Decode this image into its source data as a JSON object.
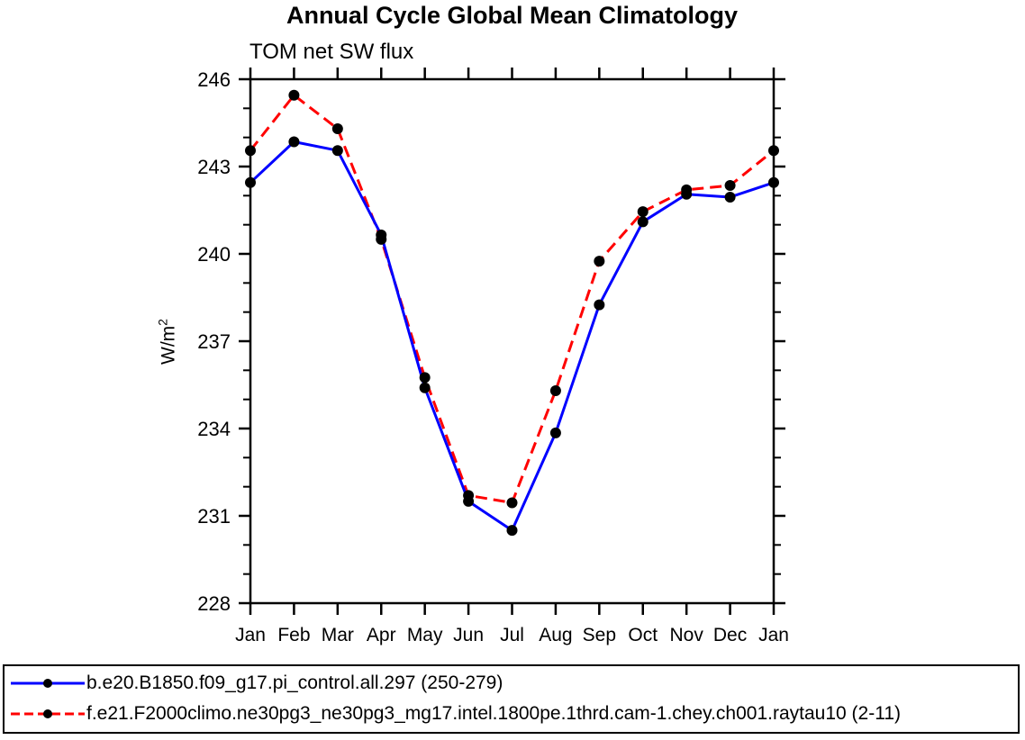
{
  "title": "Annual Cycle Global Mean Climatology",
  "subtitle": "TOM net SW flux",
  "y_axis": {
    "label_base": "W/m",
    "label_sup": "2"
  },
  "colors": {
    "series1": "#0000ff",
    "series2": "#ff0000",
    "marker": "#000000",
    "axis": "#000000",
    "background": "#ffffff"
  },
  "chart_data": {
    "type": "line",
    "title": "Annual Cycle Global Mean Climatology",
    "subtitle": "TOM net SW flux",
    "ylabel": "W/m2",
    "ylim": [
      228,
      246
    ],
    "y_major_ticks": [
      246,
      243,
      240,
      237,
      234,
      231,
      228
    ],
    "y_minor_step": 1,
    "grid": false,
    "legend_position": "bottom",
    "categories": [
      "Jan",
      "Feb",
      "Mar",
      "Apr",
      "May",
      "Jun",
      "Jul",
      "Aug",
      "Sep",
      "Oct",
      "Nov",
      "Dec",
      "Jan"
    ],
    "series": [
      {
        "name": "b.e20.B1850.f09_g17.pi_control.all.297 (250-279)",
        "color": "#0000ff",
        "line_style": "solid",
        "marker": "filled-circle",
        "marker_color": "#000000",
        "values": [
          242.45,
          243.85,
          243.55,
          240.65,
          235.4,
          231.5,
          230.5,
          233.85,
          238.25,
          241.1,
          242.05,
          241.95,
          242.45
        ]
      },
      {
        "name": "f.e21.F2000climo.ne30pg3_ne30pg3_mg17.intel.1800pe.1thrd.cam-1.chey.ch001.raytau10 (2-11)",
        "color": "#ff0000",
        "line_style": "dashed",
        "marker": "filled-circle",
        "marker_color": "#000000",
        "values": [
          243.55,
          245.45,
          244.3,
          240.5,
          235.75,
          231.7,
          231.45,
          235.3,
          239.75,
          241.45,
          242.2,
          242.35,
          243.55
        ]
      }
    ]
  }
}
